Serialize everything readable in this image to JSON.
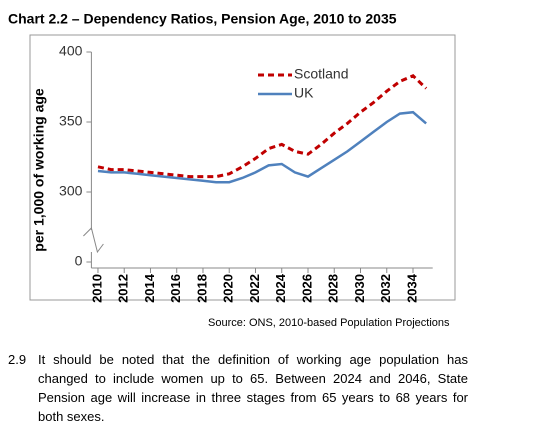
{
  "chart_data": {
    "type": "line",
    "title": "Chart 2.2 – Dependency Ratios, Pension Age, 2010 to 2035",
    "y_label": "per 1,000 of working age",
    "x": [
      2010,
      2011,
      2012,
      2013,
      2014,
      2015,
      2016,
      2017,
      2018,
      2019,
      2020,
      2021,
      2022,
      2023,
      2024,
      2025,
      2026,
      2027,
      2028,
      2029,
      2030,
      2031,
      2032,
      2033,
      2034,
      2035
    ],
    "series": [
      {
        "name": "Scotland",
        "color": "#c00000",
        "dash": true,
        "values": [
          318,
          316,
          316,
          315,
          314,
          313,
          312,
          311,
          311,
          311,
          313,
          318,
          324,
          331,
          334,
          329,
          327,
          334,
          342,
          349,
          357,
          364,
          372,
          379,
          383,
          374
        ]
      },
      {
        "name": "UK",
        "color": "#4f81bd",
        "dash": false,
        "values": [
          315,
          314,
          314,
          313,
          312,
          311,
          310,
          309,
          308,
          307,
          307,
          310,
          314,
          319,
          320,
          314,
          311,
          317,
          323,
          329,
          336,
          343,
          350,
          356,
          357,
          349
        ]
      }
    ],
    "xlim": [
      2009.5,
      2035.5
    ],
    "xticks": [
      2010,
      2012,
      2014,
      2016,
      2018,
      2020,
      2022,
      2024,
      2026,
      2028,
      2030,
      2032,
      2034
    ],
    "ylim": [
      0,
      400
    ],
    "yticks": [
      0,
      300,
      350,
      400
    ],
    "axis_break": [
      0,
      300
    ],
    "legend": "top-right",
    "source": "Source: ONS, 2010-based Population Projections"
  },
  "paragraph": {
    "number": "2.9",
    "text": "It should be noted that the definition of working age population has changed to include women up to 65. Between 2024 and 2046, State Pension age will increase in three stages from 65 years to 68 years for both sexes."
  }
}
